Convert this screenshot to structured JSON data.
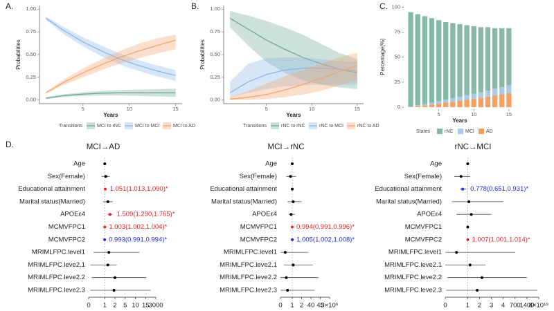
{
  "chart_data": [
    {
      "type": "line",
      "panel": "A.",
      "xlabel": "Years",
      "ylabel": "Probabilities",
      "legend_title": "Transitions",
      "x": [
        1,
        3,
        5,
        7,
        9,
        11,
        13,
        15
      ],
      "series": [
        {
          "name": "MCI to rNC",
          "color": "#6fa794",
          "values": [
            0.02,
            0.05,
            0.065,
            0.075,
            0.08,
            0.08,
            0.08,
            0.08
          ],
          "lower": [
            0.01,
            0.035,
            0.045,
            0.05,
            0.05,
            0.045,
            0.04,
            0.035
          ],
          "upper": [
            0.03,
            0.065,
            0.085,
            0.1,
            0.11,
            0.115,
            0.12,
            0.125
          ]
        },
        {
          "name": "MCI to MCI",
          "color": "#8cb6e6",
          "values": [
            0.9,
            0.76,
            0.64,
            0.54,
            0.45,
            0.38,
            0.32,
            0.27
          ],
          "lower": [
            0.88,
            0.72,
            0.59,
            0.48,
            0.39,
            0.32,
            0.26,
            0.21
          ],
          "upper": [
            0.92,
            0.8,
            0.69,
            0.6,
            0.51,
            0.44,
            0.38,
            0.33
          ]
        },
        {
          "name": "MCI to AD",
          "color": "#f4a46c",
          "values": [
            0.08,
            0.2,
            0.3,
            0.39,
            0.47,
            0.54,
            0.6,
            0.66
          ],
          "lower": [
            0.07,
            0.17,
            0.25,
            0.33,
            0.4,
            0.46,
            0.51,
            0.56
          ],
          "upper": [
            0.09,
            0.23,
            0.35,
            0.45,
            0.54,
            0.62,
            0.68,
            0.72
          ]
        }
      ],
      "xlim": [
        0.3,
        15.7
      ],
      "xticks": [
        5,
        10,
        15
      ],
      "ylim": [
        -0.04,
        1.04
      ],
      "yticks": [
        {
          "value": 0,
          "label": "0.00"
        },
        {
          "value": 0.25,
          "label": "0.25"
        },
        {
          "value": 0.5,
          "label": "0.50"
        },
        {
          "value": 0.75,
          "label": "0.75"
        },
        {
          "value": 1,
          "label": "1.00"
        }
      ]
    },
    {
      "type": "line",
      "panel": "B.",
      "xlabel": "Years",
      "ylabel": "Probabilities",
      "legend_title": "Transitions",
      "x": [
        1,
        3,
        5,
        7,
        9,
        11,
        13,
        15
      ],
      "series": [
        {
          "name": "rNC to rNC",
          "color": "#6fa794",
          "values": [
            0.9,
            0.78,
            0.66,
            0.56,
            0.47,
            0.4,
            0.34,
            0.3
          ],
          "lower": [
            0.8,
            0.6,
            0.42,
            0.3,
            0.22,
            0.17,
            0.14,
            0.12
          ],
          "upper": [
            0.98,
            0.93,
            0.87,
            0.8,
            0.72,
            0.62,
            0.52,
            0.45
          ]
        },
        {
          "name": "rNC to MCI",
          "color": "#8cb6e6",
          "values": [
            0.08,
            0.2,
            0.28,
            0.33,
            0.35,
            0.35,
            0.34,
            0.32
          ],
          "lower": [
            0.03,
            0.08,
            0.12,
            0.15,
            0.16,
            0.17,
            0.17,
            0.17
          ],
          "upper": [
            0.2,
            0.4,
            0.46,
            0.47,
            0.47,
            0.45,
            0.43,
            0.42
          ]
        },
        {
          "name": "rNC to AD",
          "color": "#f4a46c",
          "values": [
            0.01,
            0.03,
            0.06,
            0.11,
            0.17,
            0.24,
            0.31,
            0.38
          ],
          "lower": [
            0,
            0,
            0.01,
            0.03,
            0.06,
            0.1,
            0.16,
            0.22
          ],
          "upper": [
            0.03,
            0.1,
            0.18,
            0.26,
            0.33,
            0.4,
            0.47,
            0.52
          ]
        }
      ],
      "xlim": [
        0.3,
        15.7
      ],
      "xticks": [
        5,
        10,
        15
      ],
      "ylim": [
        -0.04,
        1.04
      ],
      "yticks": [
        {
          "value": 0,
          "label": "0.00"
        },
        {
          "value": 0.25,
          "label": "0.25"
        },
        {
          "value": 0.5,
          "label": "0.50"
        },
        {
          "value": 0.75,
          "label": "0.75"
        },
        {
          "value": 1,
          "label": "1.00"
        }
      ]
    },
    {
      "type": "stacked_bar",
      "panel": "C.",
      "xlabel": "Years",
      "ylabel": "Percentage(%)",
      "legend_title": "States",
      "x": [
        1,
        2,
        3,
        4,
        5,
        6,
        7,
        8,
        9,
        10,
        11,
        12,
        13,
        14,
        15
      ],
      "series": [
        {
          "name": "AD",
          "color": "#f5a05e",
          "values": [
            0,
            1,
            1.5,
            2.5,
            3.5,
            4.5,
            5.5,
            6.5,
            7.5,
            8.5,
            9.5,
            10.5,
            12,
            13,
            14
          ]
        },
        {
          "name": "MCI",
          "color": "#a9c9ee",
          "values": [
            0.5,
            1,
            1.5,
            2,
            2.5,
            3,
            3.5,
            4,
            4.5,
            5,
            5.5,
            6,
            6.5,
            7,
            8
          ]
        },
        {
          "name": "rNC",
          "color": "#86b9a6",
          "values": [
            94.5,
            91,
            88,
            84.5,
            81,
            77.5,
            75,
            72.5,
            70,
            67.5,
            65,
            63.5,
            60.5,
            59,
            57
          ]
        }
      ],
      "legend_order": [
        "rNC",
        "MCI",
        "AD"
      ],
      "xlim": [
        0,
        16
      ],
      "xticks": [
        5,
        10,
        15
      ],
      "ylim": [
        -2,
        103
      ],
      "yticks": [
        0,
        25,
        50,
        75,
        100
      ]
    },
    {
      "type": "forest",
      "panel": "D.",
      "title": "MCI→AD",
      "categories": [
        "Age",
        "Sex(Female)",
        "Educational attainment",
        "Marital status(Married)",
        "APOEε4",
        "MCMVFPC1",
        "MCMVFPC2",
        "MRIMLFPC.level1",
        "MRIMLFPC.leve2.1",
        "MRIMLFPC.leve2.2",
        "MRIMLFPC.leve2.3"
      ],
      "values": [
        1.0,
        1.1,
        1.051,
        1.3,
        1.509,
        1.003,
        0.993,
        1.4,
        1.3,
        2.0,
        1.9
      ],
      "lower": [
        0.98,
        0.8,
        1.013,
        0.9,
        1.29,
        1.002,
        0.991,
        0.3,
        0.1,
        0.2,
        0.1
      ],
      "upper": [
        1.02,
        1.5,
        1.09,
        1.8,
        1.765,
        1.004,
        0.994,
        12,
        2.5,
        200,
        1500
      ],
      "value_labels": [
        null,
        null,
        "1.051(1.013,1.090)*",
        null,
        "1.509(1.290,1.765)*",
        "1.003(1.002,1.004)*",
        "0.993(0.991,0.994)*",
        null,
        null,
        null,
        null
      ],
      "label_colors": [
        null,
        null,
        "#e32222",
        null,
        "#e32222",
        "#e32222",
        "#1f2ae0",
        null,
        null,
        null,
        null
      ],
      "ref_line": 1,
      "xticks": [
        0,
        1,
        2,
        5,
        10,
        15,
        3000
      ]
    },
    {
      "type": "forest",
      "title": "MCI→rNC",
      "categories": [
        "Age",
        "Sex(Female)",
        "Educational attainment",
        "Marital status(Married)",
        "APOEε4",
        "MCMVFPC1",
        "MCMVFPC2",
        "MRIMLFPC.level1",
        "MRIMLFPC.leve2.1",
        "MRIMLFPC.leve2.2",
        "MRIMLFPC.leve2.3"
      ],
      "values": [
        1.0,
        0.85,
        1.0,
        1.1,
        0.9,
        0.994,
        1.005,
        0.4,
        1.1,
        0.5,
        0.6
      ],
      "lower": [
        0.98,
        0.5,
        0.95,
        0.6,
        0.7,
        0.991,
        1.002,
        0,
        0.3,
        0,
        0
      ],
      "upper": [
        1.02,
        1.4,
        1.05,
        2.1,
        1.3,
        0.996,
        1.008,
        30,
        41,
        44,
        42
      ],
      "value_labels": [
        null,
        null,
        null,
        null,
        null,
        "0.994(0.991,0.996)*",
        "1.005(1.002,1.008)*",
        null,
        null,
        null,
        null
      ],
      "label_colors": [
        null,
        null,
        null,
        null,
        null,
        "#e32222",
        "#1f2ae0",
        null,
        null,
        null,
        null
      ],
      "ref_line": 1,
      "xticks": [
        0,
        1,
        2,
        40,
        45,
        {
          "value": 3000000,
          "label": "3×10⁶"
        }
      ]
    },
    {
      "type": "forest",
      "title": "rNC→MCI",
      "categories": [
        "Age",
        "Sex(Female)",
        "Educational attainment",
        "Marital status(Married)",
        "APOEε4",
        "MCMVFPC1",
        "MCMVFPC2",
        "MRIMLFPC.level1",
        "MRIMLFPC.leve2.1",
        "MRIMLFPC.leve2.2",
        "MRIMLFPC.leve2.3"
      ],
      "values": [
        1.0,
        0.7,
        0.778,
        1.1,
        1.3,
        1.0,
        1.007,
        0.5,
        1.2,
        2.2,
        1.8
      ],
      "lower": [
        0.97,
        0.4,
        0.651,
        0.3,
        0.5,
        0.995,
        1.001,
        0,
        0,
        0.1,
        0.05
      ],
      "upper": [
        1.03,
        1.2,
        0.931,
        4,
        3,
        1.005,
        1.014,
        700,
        2.5,
        1400,
        70000000000000000000
      ],
      "value_labels": [
        null,
        null,
        "0.778(0.651,0.931)*",
        null,
        null,
        null,
        "1.007(1.001,1.014)*",
        null,
        null,
        null,
        null
      ],
      "label_colors": [
        null,
        null,
        "#1f2ae0",
        null,
        null,
        null,
        "#e32222",
        null,
        null,
        null,
        null
      ],
      "ref_line": 1,
      "xticks": [
        0,
        1,
        2,
        3,
        4,
        700,
        1400,
        {
          "value": 80000000000000000000,
          "label": "8×10¹⁹"
        }
      ]
    }
  ]
}
